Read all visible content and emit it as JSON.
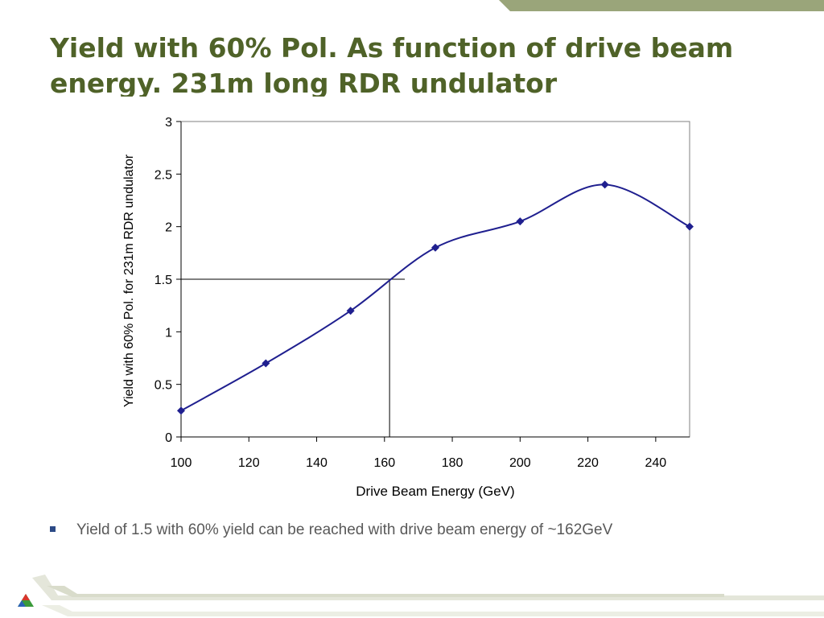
{
  "slide": {
    "title_line1": "Yield with 60% Pol. As function of drive beam",
    "title_line2": "energy.  231m long RDR undulator",
    "bullet": "Yield of 1.5 with 60% yield can be reached with drive beam energy of ~162GeV"
  },
  "colors": {
    "title": "#4f6228",
    "series": "#1f1f8f",
    "accent_band": "#9aa57a"
  },
  "chart_data": {
    "type": "line",
    "xlabel": "Drive Beam Energy (GeV)",
    "ylabel": "Yield with 60% Pol. for 231m RDR undulator",
    "xlim": [
      100,
      250
    ],
    "ylim": [
      0,
      3
    ],
    "xticks": [
      100,
      120,
      140,
      160,
      180,
      200,
      220,
      240
    ],
    "yticks": [
      0,
      0.5,
      1,
      1.5,
      2,
      2.5,
      3
    ],
    "grid": false,
    "legend": "none",
    "smoothed": true,
    "marker": "diamond",
    "series": [
      {
        "x": [
          100,
          125,
          150,
          175,
          200,
          225,
          250
        ],
        "y": [
          0.25,
          0.7,
          1.2,
          1.8,
          2.05,
          2.4,
          2.0
        ]
      }
    ],
    "annotation_lines": {
      "x": 161.5,
      "y": 1.5,
      "horizontal_to_x": 166
    }
  }
}
